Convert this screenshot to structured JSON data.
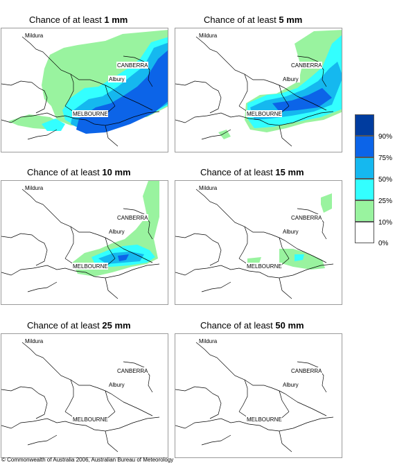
{
  "panels": [
    {
      "title_prefix": "Chance of at least ",
      "amount": "1 mm",
      "labels": {
        "mildura": "Mildura",
        "canberra": "CANBERRA",
        "albury": "Albury",
        "melbourne": "MELBOURNE"
      }
    },
    {
      "title_prefix": "Chance of at least ",
      "amount": "5 mm",
      "labels": {
        "mildura": "Mildura",
        "canberra": "CANBERRA",
        "albury": "Albury",
        "melbourne": "MELBOURNE"
      }
    },
    {
      "title_prefix": "Chance of at least ",
      "amount": "10 mm",
      "labels": {
        "mildura": "Mildura",
        "canberra": "CANBERRA",
        "albury": "Albury",
        "melbourne": "MELBOURNE"
      }
    },
    {
      "title_prefix": "Chance of at least ",
      "amount": "15 mm",
      "labels": {
        "mildura": "Mildura",
        "canberra": "CANBERRA",
        "albury": "Albury",
        "melbourne": "MELBOURNE"
      }
    },
    {
      "title_prefix": "Chance of at least ",
      "amount": "25 mm",
      "labels": {
        "mildura": "Mildura",
        "canberra": "CANBERRA",
        "albury": "Albury",
        "melbourne": "MELBOURNE"
      }
    },
    {
      "title_prefix": "Chance of at least ",
      "amount": "50 mm",
      "labels": {
        "mildura": "Mildura",
        "canberra": "CANBERRA",
        "albury": "Albury",
        "melbourne": "MELBOURNE"
      }
    }
  ],
  "legend": {
    "labels": [
      "90%",
      "75%",
      "50%",
      "25%",
      "10%",
      "0%"
    ],
    "colors": [
      "#003c9f",
      "#0c64e8",
      "#15b8ef",
      "#33ffff",
      "#99f39f",
      "#ffffff"
    ]
  },
  "copyright": "© Commonwealth of Australia 2006, Australian Bureau of Meteorology"
}
